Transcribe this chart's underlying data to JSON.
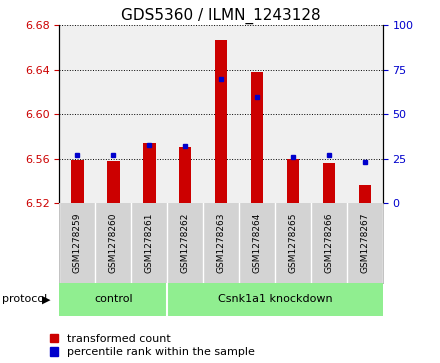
{
  "title": "GDS5360 / ILMN_1243128",
  "samples": [
    "GSM1278259",
    "GSM1278260",
    "GSM1278261",
    "GSM1278262",
    "GSM1278263",
    "GSM1278264",
    "GSM1278265",
    "GSM1278266",
    "GSM1278267"
  ],
  "red_values": [
    6.559,
    6.558,
    6.574,
    6.571,
    6.667,
    6.638,
    6.56,
    6.556,
    6.536
  ],
  "blue_values": [
    27,
    27,
    33,
    32,
    70,
    60,
    26,
    27,
    23
  ],
  "ylim_left": [
    6.52,
    6.68
  ],
  "ylim_right": [
    0,
    100
  ],
  "yticks_left": [
    6.52,
    6.56,
    6.6,
    6.64,
    6.68
  ],
  "yticks_right": [
    0,
    25,
    50,
    75,
    100
  ],
  "red_color": "#cc0000",
  "blue_color": "#0000cc",
  "bar_bottom": 6.52,
  "control_count": 3,
  "group_labels": [
    "control",
    "Csnk1a1 knockdown"
  ],
  "group_color": "#90ee90",
  "protocol_label": "protocol",
  "legend_red": "transformed count",
  "legend_blue": "percentile rank within the sample",
  "background_plot": "#f0f0f0",
  "sample_band_color": "#d3d3d3",
  "title_fontsize": 11,
  "tick_fontsize": 8,
  "sample_fontsize": 6.5,
  "label_fontsize": 8,
  "legend_fontsize": 8
}
